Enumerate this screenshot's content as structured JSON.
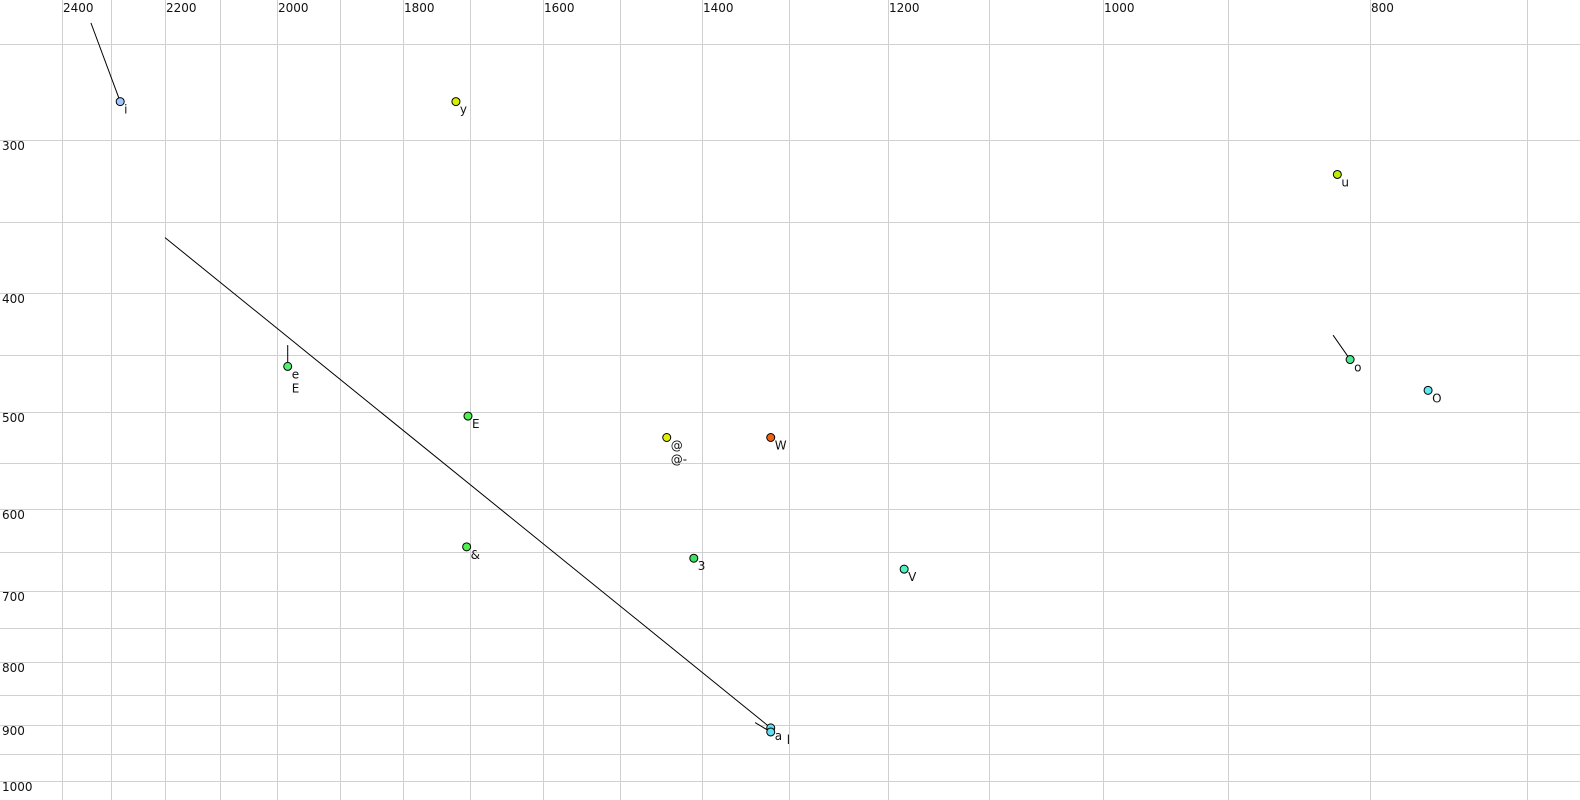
{
  "chart_data": {
    "type": "scatter",
    "title": "",
    "xlabel": "",
    "ylabel": "",
    "x_reversed": true,
    "xlim": [
      2400,
      700
    ],
    "ylim": [
      250,
      1000
    ],
    "grid": true,
    "x_ticks": [
      2400,
      2200,
      2000,
      1800,
      1600,
      1400,
      1200,
      1000,
      800
    ],
    "y_ticks": [
      300,
      400,
      500,
      600,
      700,
      800,
      900,
      1000
    ],
    "x_grid": [
      2400,
      2300,
      2200,
      2100,
      2000,
      1900,
      1800,
      1700,
      1600,
      1500,
      1400,
      1300,
      1200,
      1100,
      1000,
      900,
      800,
      700
    ],
    "y_grid": [
      250,
      300,
      350,
      400,
      450,
      500,
      550,
      600,
      650,
      700,
      750,
      800,
      850,
      900,
      950,
      1000
    ],
    "points": [
      {
        "labels": [
          "i"
        ],
        "x": 2283,
        "y": 280,
        "color": "#a0c8ff",
        "trail": [
          [
            2341,
            239
          ]
        ]
      },
      {
        "labels": [
          "y"
        ],
        "x": 1721,
        "y": 280,
        "color": "#d8f000"
      },
      {
        "labels": [
          "u"
        ],
        "x": 823,
        "y": 321,
        "color": "#b8f000"
      },
      {
        "labels": [
          "o"
        ],
        "x": 814,
        "y": 454,
        "color": "#50e890",
        "trail": [
          [
            826,
            434
          ]
        ]
      },
      {
        "labels": [
          "O"
        ],
        "x": 763,
        "y": 481,
        "color": "#60e8f0"
      },
      {
        "labels": [
          "e",
          "E"
        ],
        "x": 1983,
        "y": 460,
        "color": "#50f070",
        "trail": [
          [
            1983,
            442
          ]
        ]
      },
      {
        "labels": [
          "E"
        ],
        "x": 1703,
        "y": 504,
        "color": "#50f050",
        "label_color": "#5a5a80"
      },
      {
        "labels": [
          "@",
          "@-"
        ],
        "x": 1443,
        "y": 525,
        "color": "#e0f000"
      },
      {
        "labels": [
          "W"
        ],
        "x": 1321,
        "y": 525,
        "color": "#f06010"
      },
      {
        "labels": [
          "&"
        ],
        "x": 1705,
        "y": 644,
        "color": "#50f050"
      },
      {
        "labels": [
          "3"
        ],
        "x": 1410,
        "y": 658,
        "color": "#40e060"
      },
      {
        "labels": [
          "V"
        ],
        "x": 1184,
        "y": 672,
        "color": "#50f0c0"
      },
      {
        "labels": [
          "a"
        ],
        "x": 1321,
        "y": 905,
        "color": "#60e0f0",
        "trail": [
          [
            2200,
            361
          ]
        ]
      },
      {
        "labels": [
          "l"
        ],
        "x": 1321,
        "y": 912,
        "color": "#60e0f0",
        "trail": [
          [
            1339,
            896
          ]
        ]
      }
    ]
  }
}
